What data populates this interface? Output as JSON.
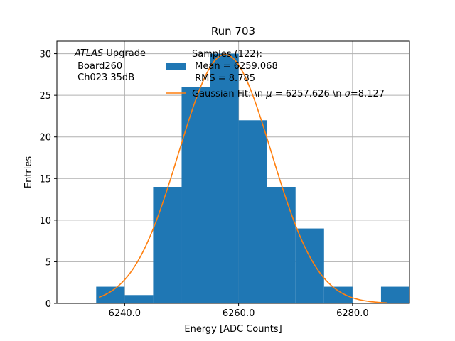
{
  "chart_data": {
    "type": "bar",
    "title": "Run 703",
    "xlabel": "Energy [ADC Counts]",
    "ylabel": "Entries",
    "xlim": [
      6228.1,
      6290.0
    ],
    "ylim": [
      0,
      31.5
    ],
    "xticks": [
      6240.0,
      6260.0,
      6280.0
    ],
    "xtick_labels": [
      "6240.0",
      "6260.0",
      "6280.0"
    ],
    "yticks": [
      0,
      5,
      10,
      15,
      20,
      25,
      30
    ],
    "ytick_labels": [
      "0",
      "5",
      "10",
      "15",
      "20",
      "25",
      "30"
    ],
    "grid": true,
    "bins": [
      {
        "x0": 6235,
        "x1": 6240,
        "count": 2
      },
      {
        "x0": 6240,
        "x1": 6245,
        "count": 1
      },
      {
        "x0": 6245,
        "x1": 6250,
        "count": 14
      },
      {
        "x0": 6250,
        "x1": 6255,
        "count": 26
      },
      {
        "x0": 6255,
        "x1": 6260,
        "count": 30
      },
      {
        "x0": 6260,
        "x1": 6265,
        "count": 22
      },
      {
        "x0": 6265,
        "x1": 6270,
        "count": 14
      },
      {
        "x0": 6270,
        "x1": 6275,
        "count": 9
      },
      {
        "x0": 6275,
        "x1": 6280,
        "count": 2
      },
      {
        "x0": 6280,
        "x1": 6285,
        "count": 0
      },
      {
        "x0": 6285,
        "x1": 6290,
        "count": 2
      }
    ],
    "fit": {
      "mu": 6257.626,
      "sigma": 8.127,
      "amplitude": 29.9,
      "x_range": [
        6235.5,
        6286.0
      ]
    },
    "legend": {
      "placement": "top-right",
      "entries": [
        {
          "kind": "bar",
          "lines": [
            "Samples (122):",
            " Mean = 6259.068",
            " RMS = 8.785"
          ]
        },
        {
          "kind": "line",
          "prefix": "Gaussian Fit: \\n ",
          "mu_label": "μ",
          "mid": " = 6257.626 \\n ",
          "sigma_label": "σ",
          "suffix": "=8.127"
        }
      ]
    },
    "annotation": {
      "italic": "ATLAS",
      "rest": " Upgrade",
      "lines": [
        " Board260",
        " Ch023 35dB"
      ]
    },
    "colors": {
      "bars": "#1f77b4",
      "fit": "#ff7f0e",
      "grid": "#b0b0b0"
    }
  }
}
